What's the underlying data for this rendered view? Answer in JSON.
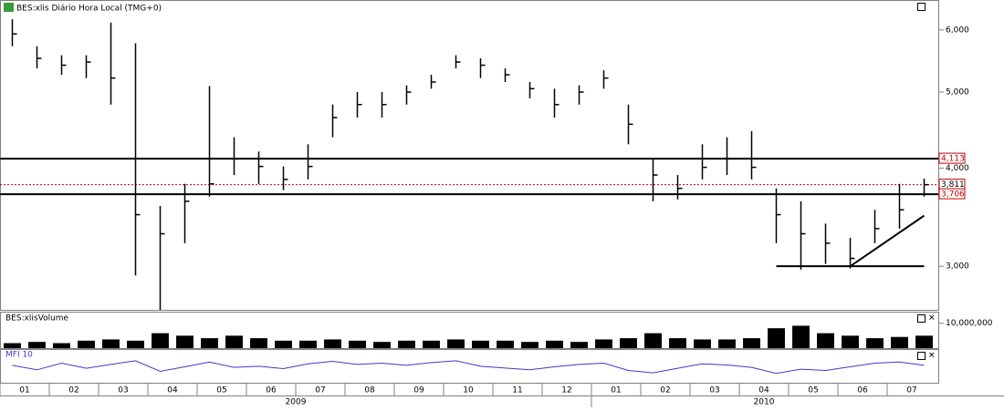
{
  "chart_data": {
    "type": "ohlc",
    "title": "BES:xlis Diário Hora Local (TMG+0)",
    "categories": [
      "01",
      null,
      "02",
      null,
      "03",
      null,
      "04",
      null,
      "05",
      null,
      "06",
      null,
      "07",
      null,
      "08",
      null,
      "09",
      null,
      "10",
      null,
      "11",
      null,
      "12",
      null,
      "01",
      null,
      "02",
      null,
      "03",
      null,
      "04",
      null,
      "05",
      null,
      "06",
      null,
      "07",
      null
    ],
    "x_groups": [
      "2009",
      "2010"
    ],
    "series": [
      {
        "name": "close",
        "color": "#000000",
        "values": [
          5.93,
          5.52,
          5.41,
          5.46,
          5.21,
          3.49,
          3.3,
          3.63,
          3.82,
          4.11,
          4.02,
          3.87,
          4.02,
          4.64,
          4.82,
          4.82,
          5.0,
          5.15,
          5.46,
          5.41,
          5.26,
          5.05,
          4.82,
          5.0,
          5.21,
          4.55,
          3.92,
          3.77,
          4.01,
          4.11,
          4.01,
          3.49,
          3.3,
          3.21,
          3.07,
          3.35,
          3.54,
          3.811
        ]
      },
      {
        "name": "high",
        "color": "#000000",
        "values": [
          6.19,
          5.72,
          5.57,
          5.57,
          6.13,
          5.77,
          3.58,
          3.82,
          5.09,
          4.38,
          4.2,
          4.02,
          4.29,
          4.82,
          5.0,
          5.0,
          5.1,
          5.26,
          5.57,
          5.52,
          5.36,
          5.15,
          5.05,
          5.1,
          5.33,
          4.82,
          4.11,
          3.92,
          4.29,
          4.38,
          4.46,
          3.77,
          3.63,
          3.4,
          3.26,
          3.54,
          3.82,
          3.88
        ]
      },
      {
        "name": "low",
        "color": "#000000",
        "values": [
          5.72,
          5.36,
          5.26,
          5.21,
          4.82,
          2.92,
          2.64,
          3.21,
          3.68,
          3.92,
          3.82,
          3.75,
          3.87,
          4.38,
          4.64,
          4.64,
          4.82,
          5.05,
          5.36,
          5.21,
          5.15,
          4.91,
          4.64,
          4.82,
          5.05,
          4.29,
          3.63,
          3.65,
          3.87,
          3.92,
          3.87,
          3.21,
          2.97,
          3.02,
          2.98,
          3.21,
          3.35,
          3.68
        ]
      }
    ],
    "ylim": [
      2.64,
      6.55
    ],
    "log_scale": true,
    "yticks": [
      {
        "value": 3,
        "label": "3,000"
      },
      {
        "value": 4,
        "label": "4,000"
      },
      {
        "value": 5,
        "label": "5,000"
      },
      {
        "value": 6,
        "label": "6,000"
      }
    ],
    "levels": [
      {
        "value": 4.113,
        "label": "4,113",
        "color": "#000000",
        "dashed": false
      },
      {
        "value": 3.811,
        "label": "3,811",
        "color": "#c00000",
        "dashed": true
      },
      {
        "value": 3.706,
        "label": "3,706",
        "color": "#000000",
        "dashed": false
      }
    ],
    "segments": [
      {
        "from": [
          31,
          3
        ],
        "to": [
          37,
          3
        ]
      },
      {
        "from": [
          34,
          3
        ],
        "to": [
          37,
          3.48
        ]
      }
    ],
    "volume": {
      "title": "BES:xlisVolume",
      "color": "#000000",
      "values": [
        2000000,
        2500000,
        2000000,
        3000000,
        3500000,
        3000000,
        6000000,
        5000000,
        4000000,
        5000000,
        4000000,
        3000000,
        3000000,
        3500000,
        3000000,
        2500000,
        3000000,
        3000000,
        3500000,
        3000000,
        3000000,
        2500000,
        3000000,
        2500000,
        3500000,
        4000000,
        6000000,
        4000000,
        3500000,
        3500000,
        4000000,
        8000000,
        9000000,
        6000000,
        5000000,
        4000000,
        4500000,
        5000000
      ],
      "ylim": [
        0,
        14300000
      ],
      "yticks": [
        {
          "value": 10000000,
          "label": "10,000,000"
        }
      ]
    },
    "mfi": {
      "title": "MFI 10",
      "color": "#3b3bc8",
      "values": [
        55,
        40,
        62,
        45,
        58,
        70,
        35,
        50,
        66,
        48,
        52,
        44,
        60,
        68,
        58,
        62,
        55,
        64,
        70,
        52,
        46,
        40,
        50,
        58,
        62,
        38,
        30,
        45,
        60,
        56,
        48,
        28,
        42,
        38,
        50,
        62,
        66,
        55
      ],
      "ylim": [
        0,
        100
      ]
    }
  }
}
